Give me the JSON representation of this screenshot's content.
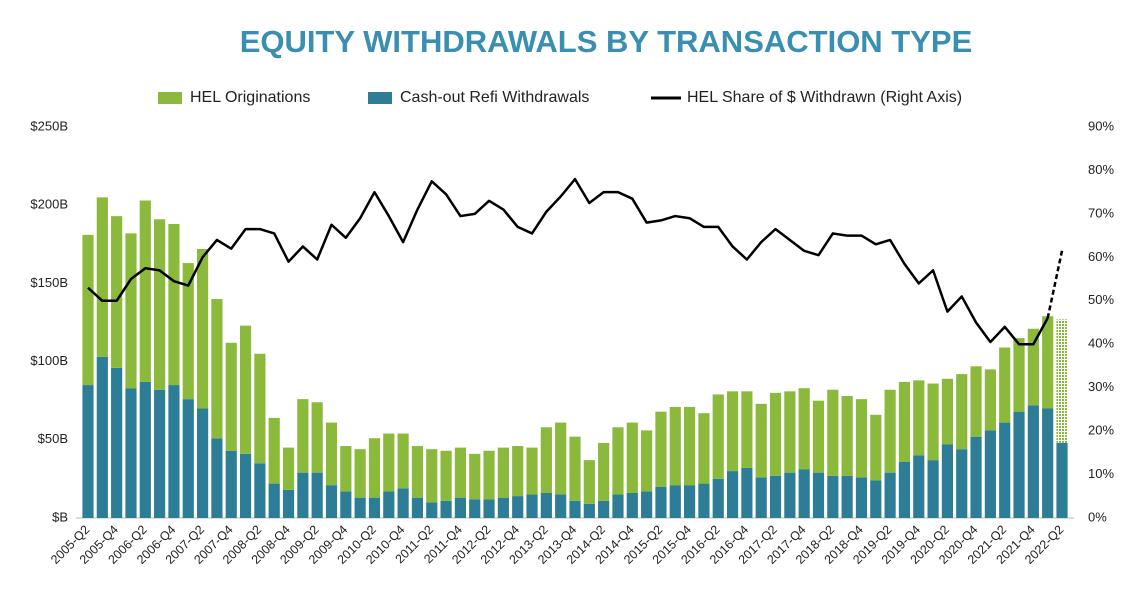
{
  "chart_data": {
    "type": "bar",
    "stacked": true,
    "title": "EQUITY WITHDRAWALS BY TRANSACTION TYPE",
    "categories": [
      "2005-Q2",
      null,
      "2005-Q4",
      null,
      "2006-Q2",
      null,
      "2006-Q4",
      null,
      "2007-Q2",
      null,
      "2007-Q4",
      null,
      "2008-Q2",
      null,
      "2008-Q4",
      null,
      "2009-Q2",
      null,
      "2009-Q4",
      null,
      "2010-Q2",
      null,
      "2010-Q4",
      null,
      "2011-Q2",
      null,
      "2011-Q4",
      null,
      "2012-Q2",
      null,
      "2012-Q4",
      null,
      "2013-Q2",
      null,
      "2013-Q4",
      null,
      "2014-Q2",
      null,
      "2014-Q4",
      null,
      "2015-Q2",
      null,
      "2015-Q4",
      null,
      "2016-Q2",
      null,
      "2016-Q4",
      null,
      "2017-Q2",
      null,
      "2017-Q4",
      null,
      "2018-Q2",
      null,
      "2018-Q4",
      null,
      "2019-Q2",
      null,
      "2019-Q4",
      null,
      "2020-Q2",
      null,
      "2020-Q4",
      null,
      "2021-Q2",
      null,
      "2021-Q4",
      null,
      "2022-Q2"
    ],
    "projected_categories": [
      "2022-Q2"
    ],
    "series": [
      {
        "name": "HEL Originations",
        "type": "bar",
        "color": "#8ab93c",
        "values": [
          96,
          102,
          97,
          99,
          116,
          109,
          103,
          87,
          102,
          89,
          69,
          82,
          70,
          42,
          27,
          47,
          45,
          40,
          29,
          31,
          38,
          37,
          35,
          33,
          34,
          32,
          32,
          29,
          31,
          32,
          32,
          30,
          42,
          46,
          41,
          28,
          37,
          43,
          45,
          39,
          48,
          50,
          50,
          45,
          54,
          51,
          49,
          47,
          53,
          52,
          52,
          46,
          55,
          51,
          50,
          42,
          53,
          51,
          48,
          49,
          42,
          48,
          45,
          39,
          48,
          47,
          49,
          59,
          79
        ]
      },
      {
        "name": "Cash-out Refi Withdrawals",
        "type": "bar",
        "color": "#2e7d96",
        "values": [
          85,
          103,
          96,
          83,
          87,
          82,
          85,
          76,
          70,
          51,
          43,
          41,
          35,
          22,
          18,
          29,
          29,
          21,
          17,
          13,
          13,
          17,
          19,
          13,
          10,
          11,
          13,
          12,
          12,
          13,
          14,
          15,
          16,
          15,
          11,
          9,
          11,
          15,
          16,
          17,
          20,
          21,
          21,
          22,
          25,
          30,
          32,
          26,
          27,
          29,
          31,
          29,
          27,
          27,
          26,
          24,
          29,
          36,
          40,
          37,
          47,
          44,
          52,
          56,
          61,
          68,
          72,
          70,
          48
        ]
      },
      {
        "name": "HEL Share of $ Withdrawn (Right Axis)",
        "type": "line",
        "axis": "y2",
        "color": "#000000",
        "values": [
          53,
          50,
          50,
          55,
          57.5,
          57,
          54.5,
          53.5,
          60,
          64,
          62,
          66.5,
          66.5,
          65.5,
          59,
          62.5,
          59.5,
          67.5,
          64.5,
          69,
          75,
          69.5,
          63.5,
          71,
          77.5,
          74.5,
          69.5,
          70,
          73,
          71,
          67,
          65.5,
          70.5,
          74,
          78,
          72.5,
          75,
          75,
          73.5,
          68,
          68.5,
          69.5,
          69,
          67,
          67,
          62.5,
          59.5,
          63.5,
          66.5,
          64,
          61.5,
          60.5,
          65.5,
          65,
          65,
          63,
          64,
          58.5,
          54,
          57,
          47.5,
          51,
          45,
          40.5,
          44,
          40,
          40,
          46,
          61.5
        ]
      }
    ],
    "ylim": [
      0,
      250
    ],
    "yticks": [
      {
        "value": 0,
        "label": "$B"
      },
      {
        "value": 50,
        "label": "$50B"
      },
      {
        "value": 100,
        "label": "$100B"
      },
      {
        "value": 150,
        "label": "$150B"
      },
      {
        "value": 200,
        "label": "$200B"
      },
      {
        "value": 250,
        "label": "$250B"
      }
    ],
    "y2lim": [
      0,
      90
    ],
    "y2ticks": [
      {
        "value": 0,
        "label": "0%"
      },
      {
        "value": 10,
        "label": "10%"
      },
      {
        "value": 20,
        "label": "20%"
      },
      {
        "value": 30,
        "label": "30%"
      },
      {
        "value": 40,
        "label": "40%"
      },
      {
        "value": 50,
        "label": "50%"
      },
      {
        "value": 60,
        "label": "60%"
      },
      {
        "value": 70,
        "label": "70%"
      },
      {
        "value": 80,
        "label": "80%"
      },
      {
        "value": 90,
        "label": "90%"
      }
    ],
    "legend": "top"
  }
}
